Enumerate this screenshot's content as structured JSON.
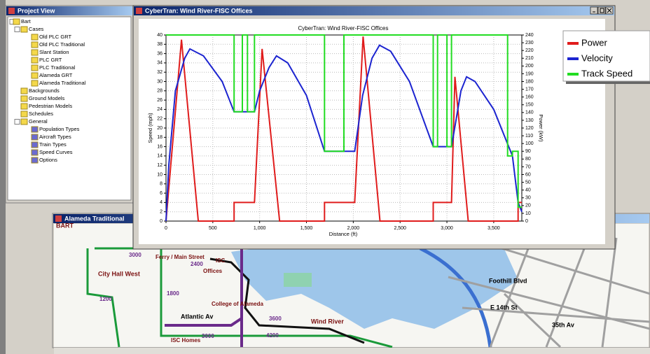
{
  "project_view": {
    "title": "Project View",
    "tree": [
      {
        "label": "Bart",
        "children": [
          {
            "label": "Cases",
            "children": [
              {
                "label": "Old PLC GRT"
              },
              {
                "label": "Old PLC Traditional"
              },
              {
                "label": "Slant Station"
              },
              {
                "label": "PLC GRT"
              },
              {
                "label": "PLC Traditional"
              },
              {
                "label": "Alameda GRT"
              },
              {
                "label": "Alameda Traditional"
              }
            ]
          },
          {
            "label": "Backgrounds"
          },
          {
            "label": "Ground Models"
          },
          {
            "label": "Pedestrian Models"
          },
          {
            "label": "Schedules"
          },
          {
            "label": "General",
            "children": [
              {
                "label": "Population Types"
              },
              {
                "label": "Aircraft Types"
              },
              {
                "label": "Train Types"
              },
              {
                "label": "Speed Curves"
              },
              {
                "label": "Options"
              }
            ]
          }
        ]
      }
    ]
  },
  "chart_window": {
    "title": "CyberTran: Wind River-FISC Offices"
  },
  "map_window": {
    "title": "Alameda Traditional",
    "labels": [
      "BART",
      "City Hall West",
      "Ferry / Main Street",
      "ISC",
      "Offices",
      "College of Alameda",
      "Atlantic Av",
      "Wind River",
      "ISC Homes",
      "Foothill Blvd",
      "E 14th St",
      "35th Av",
      "3000",
      "2400",
      "3600",
      "4200",
      "1200",
      "1800",
      "3000"
    ]
  },
  "chart_data": {
    "type": "line",
    "title": "CyberTran: Wind River-FISC Offices",
    "x_label": "Distance (ft)",
    "y_label": "Speed (mph)",
    "y2_label": "Power (kW)",
    "xlim": [
      0,
      3800
    ],
    "xticks": [
      0,
      500,
      {
        "value": 1000,
        "label": "1,000"
      },
      {
        "value": 1500,
        "label": "1,500"
      },
      {
        "value": 2000,
        "label": "2,000"
      },
      {
        "value": 2500,
        "label": "2,500"
      },
      {
        "value": 3000,
        "label": "3,000"
      },
      {
        "value": 3500,
        "label": "3,500"
      }
    ],
    "ylim": [
      0,
      40
    ],
    "yticks": [
      0,
      2,
      4,
      6,
      8,
      10,
      12,
      14,
      16,
      18,
      20,
      22,
      24,
      26,
      28,
      30,
      32,
      34,
      36,
      38,
      40
    ],
    "y2lim": [
      0,
      240
    ],
    "y2ticks": [
      0,
      10,
      20,
      30,
      40,
      50,
      60,
      70,
      80,
      90,
      100,
      110,
      120,
      130,
      140,
      150,
      160,
      170,
      180,
      190,
      200,
      210,
      220,
      230,
      240
    ],
    "grid": true,
    "series": [
      {
        "name": "Power",
        "color": "#e01c1c",
        "axis": "y2",
        "x": [
          0,
          165,
          345,
          727,
          727,
          945,
          1026,
          1213,
          1693,
          1693,
          2015,
          2105,
          2285,
          2854,
          2854,
          3049,
          3086,
          3228,
          3760,
          3760,
          3800
        ],
        "values": [
          0,
          234,
          0,
          0,
          24,
          24,
          222,
          0,
          0,
          24,
          24,
          238,
          0,
          0,
          24,
          24,
          186,
          0,
          0,
          24,
          24
        ]
      },
      {
        "name": "Velocity",
        "color": "#1c24d0",
        "x": [
          0,
          30,
          100,
          200,
          255,
          400,
          600,
          727,
          945,
          1000,
          1100,
          1180,
          1300,
          1500,
          1693,
          2015,
          2100,
          2200,
          2280,
          2400,
          2600,
          2854,
          3049,
          3100,
          3150,
          3210,
          3300,
          3500,
          3700,
          3760,
          3800
        ],
        "values": [
          0,
          12,
          28,
          35,
          37,
          35.5,
          30,
          23.5,
          23.5,
          28,
          33,
          35.5,
          34,
          27,
          15,
          15,
          27,
          35,
          37.8,
          36.5,
          30,
          16,
          16,
          22,
          28,
          31,
          30,
          24,
          14,
          4,
          2
        ]
      },
      {
        "name": "Track Speed",
        "color": "#22dd22",
        "x": [
          0,
          727,
          727,
          815,
          815,
          870,
          870,
          945,
          945,
          1693,
          1693,
          1900,
          1900,
          2854,
          2854,
          2900,
          2900,
          3000,
          3000,
          3049,
          3049,
          3648,
          3648,
          3700,
          3700,
          3760,
          3760,
          3800
        ],
        "values": [
          40,
          40,
          23.5,
          23.5,
          40,
          40,
          23.5,
          23.5,
          40,
          40,
          15,
          15,
          40,
          40,
          16,
          16,
          40,
          40,
          16,
          16,
          40,
          40,
          14,
          14,
          15,
          15,
          3,
          3
        ]
      }
    ]
  }
}
